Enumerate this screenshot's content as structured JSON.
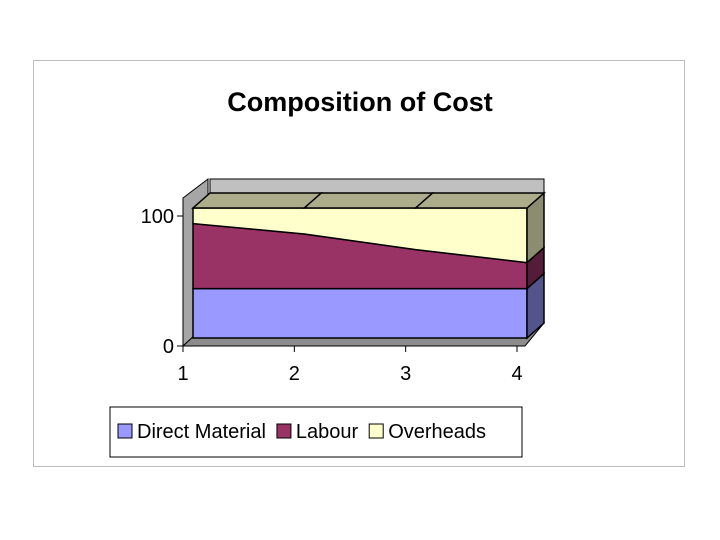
{
  "chart_data": {
    "type": "area",
    "stacked": true,
    "three_d": true,
    "title": "Composition of Cost",
    "xlabel": "",
    "ylabel": "",
    "x": [
      1,
      2,
      3,
      4
    ],
    "x_tick_labels": [
      "1",
      "2",
      "3",
      "4"
    ],
    "ylim": [
      0,
      100
    ],
    "y_tick_labels": [
      "0",
      "100"
    ],
    "grid": false,
    "legend_position": "bottom",
    "series": [
      {
        "name": "Direct Material",
        "values": [
          38,
          38,
          38,
          38
        ],
        "color": "#9999ff"
      },
      {
        "name": "Labour",
        "values": [
          50,
          42,
          30,
          20
        ],
        "color": "#993366"
      },
      {
        "name": "Overheads",
        "values": [
          12,
          20,
          32,
          42
        ],
        "color": "#ffffcc"
      }
    ]
  }
}
